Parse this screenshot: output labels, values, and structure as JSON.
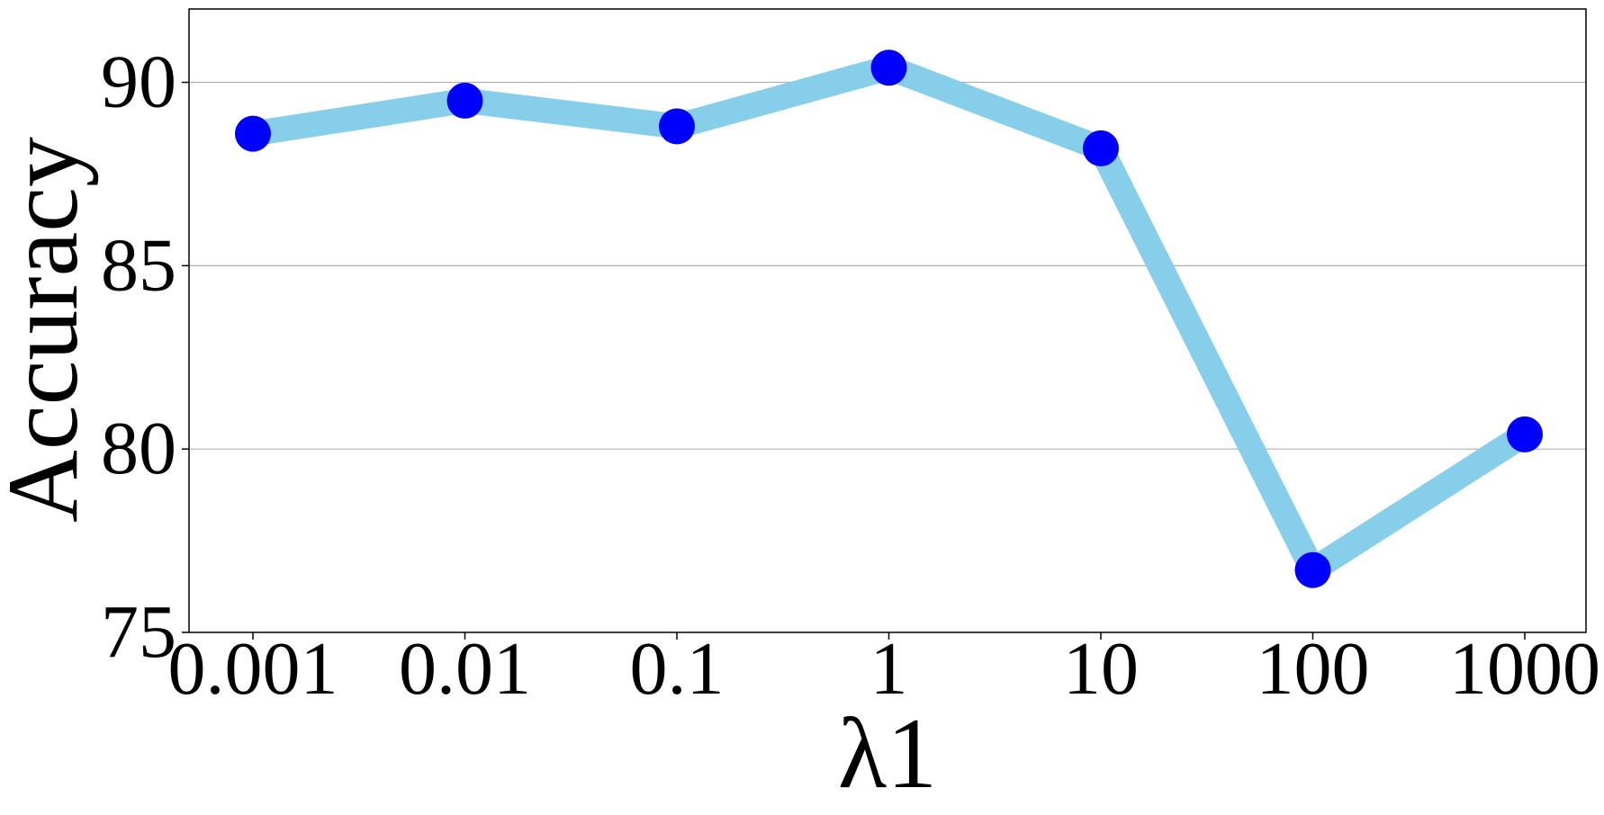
{
  "chart_data": {
    "type": "line",
    "title": "",
    "xlabel": "λ1",
    "ylabel": "Accuracy",
    "categories": [
      "0.001",
      "0.01",
      "0.1",
      "1",
      "10",
      "100",
      "1000"
    ],
    "series": [
      {
        "values": [
          88.6,
          89.5,
          88.8,
          90.4,
          88.2,
          76.7,
          80.4
        ]
      }
    ],
    "ylim": [
      75,
      92
    ],
    "yticks": [
      "75",
      "80",
      "85",
      "90"
    ],
    "grid": "horizontal",
    "legend": "none",
    "colors": {
      "line": "#87ceeb",
      "marker": "#0000ff",
      "grid": "#b0b0b0",
      "axis": "#000000"
    }
  }
}
